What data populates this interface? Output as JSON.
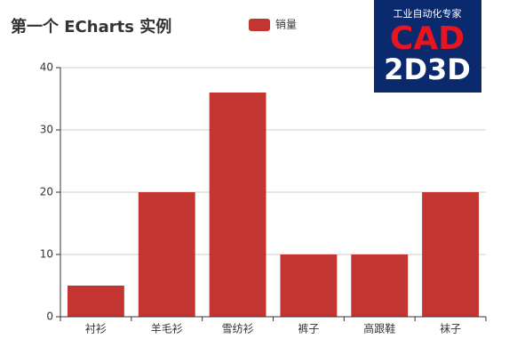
{
  "chart_data": {
    "type": "bar",
    "title": "第一个 ECharts 实例",
    "categories": [
      "衬衫",
      "羊毛衫",
      "雪纺衫",
      "裤子",
      "高跟鞋",
      "袜子"
    ],
    "series": [
      {
        "name": "销量",
        "color": "#c23531",
        "values": [
          5,
          20,
          36,
          10,
          10,
          20
        ]
      }
    ],
    "ylim": [
      0,
      40
    ],
    "yticks": [
      0,
      10,
      20,
      30,
      40
    ],
    "grid": true,
    "legend": "top"
  },
  "logo": {
    "tagline": "工业自动化专家",
    "line1": "CAD",
    "line2": "2D3D"
  }
}
